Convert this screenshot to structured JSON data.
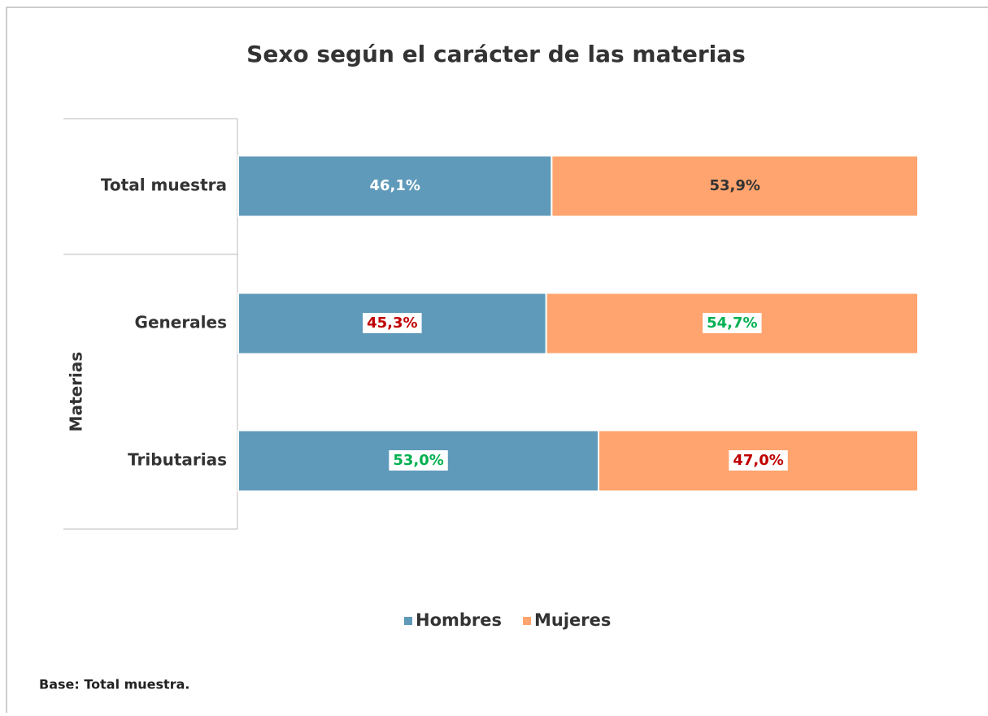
{
  "chart_data": {
    "type": "stacked_bar_100",
    "title": "Sexo según el carácter de las materias",
    "y_label": "Materias",
    "categories": [
      "Total muestra",
      "Generales",
      "Tributarias"
    ],
    "series": [
      {
        "name": "Hombres",
        "color": "#5f9aba",
        "values": [
          46.1,
          45.3,
          53.0
        ],
        "value_labels": [
          "46,1%",
          "45,3%",
          "53,0%"
        ],
        "label_colors": [
          "#ffffff",
          "#c00000",
          "#00b050"
        ],
        "label_backgrounds": [
          null,
          "#ffffff",
          "#ffffff"
        ]
      },
      {
        "name": "Mujeres",
        "color": "#ffa46e",
        "values": [
          53.9,
          54.7,
          47.0
        ],
        "value_labels": [
          "53,9%",
          "54,7%",
          "47,0%"
        ],
        "label_colors": [
          "#333333",
          "#00b050",
          "#c00000"
        ],
        "label_backgrounds": [
          null,
          "#ffffff",
          "#ffffff"
        ]
      }
    ],
    "legend": "bottom",
    "note": "Base: Total muestra."
  }
}
